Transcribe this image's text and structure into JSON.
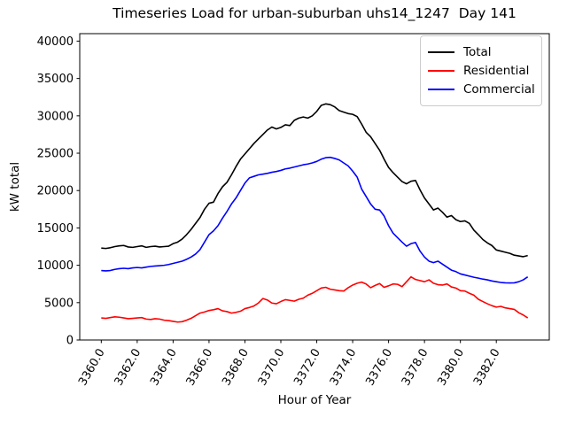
{
  "title": "Timeseries Load for urban-suburban uhs14_1247  Day 141",
  "chart_data": {
    "type": "line",
    "title": "Timeseries Load for urban-suburban uhs14_1247  Day 141",
    "xlabel": "Hour of Year",
    "ylabel": "kW total",
    "x_start": 3360.0,
    "x_step": 0.25,
    "x_points": 96,
    "xlim": [
      3358.8,
      3384.95
    ],
    "ylim": [
      0,
      41000
    ],
    "grid": false,
    "legend_position": "upper right",
    "x_tick_values": [
      3360,
      3362,
      3364,
      3366,
      3368,
      3370,
      3372,
      3374,
      3376,
      3378,
      3380,
      3382
    ],
    "x_tick_labels": [
      "3360.0",
      "3362.0",
      "3364.0",
      "3366.0",
      "3368.0",
      "3370.0",
      "3372.0",
      "3374.0",
      "3376.0",
      "3378.0",
      "3380.0",
      "3382.0"
    ],
    "y_tick_values": [
      0,
      5000,
      10000,
      15000,
      20000,
      25000,
      30000,
      35000,
      40000
    ],
    "y_tick_labels": [
      "0",
      "5000",
      "10000",
      "15000",
      "20000",
      "25000",
      "30000",
      "35000",
      "40000"
    ],
    "axis_color": "#000000",
    "background_color": "#ffffff",
    "series": [
      {
        "name": "Total",
        "color": "#000000",
        "values": [
          12300,
          12250,
          12350,
          12500,
          12600,
          12650,
          12450,
          12400,
          12500,
          12600,
          12400,
          12500,
          12550,
          12450,
          12500,
          12550,
          12900,
          13100,
          13500,
          14100,
          14800,
          15600,
          16400,
          17500,
          18300,
          18450,
          19600,
          20500,
          21100,
          22100,
          23200,
          24200,
          24900,
          25600,
          26300,
          26900,
          27500,
          28100,
          28500,
          28250,
          28450,
          28800,
          28700,
          29400,
          29700,
          29850,
          29700,
          30000,
          30600,
          31400,
          31600,
          31500,
          31200,
          30700,
          30500,
          30300,
          30200,
          29900,
          28900,
          27800,
          27200,
          26300,
          25400,
          24200,
          23100,
          22400,
          21800,
          21200,
          20900,
          21250,
          21350,
          20100,
          19000,
          18200,
          17400,
          17650,
          17100,
          16450,
          16650,
          16100,
          15850,
          15950,
          15600,
          14700,
          14100,
          13450,
          13000,
          12650,
          12050,
          11900,
          11750,
          11600,
          11350,
          11250,
          11150,
          11300
        ]
      },
      {
        "name": "Residential",
        "color": "#ff0000",
        "values": [
          2950,
          2900,
          3000,
          3100,
          3050,
          2950,
          2850,
          2900,
          2950,
          3000,
          2800,
          2750,
          2850,
          2800,
          2650,
          2600,
          2500,
          2400,
          2450,
          2650,
          2900,
          3250,
          3600,
          3750,
          3950,
          4050,
          4200,
          3900,
          3800,
          3600,
          3700,
          3850,
          4200,
          4350,
          4550,
          4950,
          5550,
          5350,
          4950,
          4850,
          5150,
          5400,
          5300,
          5200,
          5450,
          5600,
          6000,
          6250,
          6600,
          6950,
          7050,
          6800,
          6700,
          6600,
          6550,
          7000,
          7350,
          7600,
          7750,
          7500,
          7000,
          7300,
          7550,
          7050,
          7250,
          7500,
          7450,
          7150,
          7800,
          8450,
          8100,
          7950,
          7800,
          8050,
          7600,
          7400,
          7350,
          7500,
          7100,
          6950,
          6600,
          6550,
          6250,
          6000,
          5450,
          5150,
          4850,
          4600,
          4400,
          4500,
          4300,
          4200,
          4100,
          3650,
          3350,
          2950
        ]
      },
      {
        "name": "Commercial",
        "color": "#0000ff",
        "values": [
          9300,
          9250,
          9300,
          9450,
          9550,
          9600,
          9550,
          9650,
          9700,
          9650,
          9750,
          9850,
          9900,
          9950,
          10000,
          10100,
          10250,
          10400,
          10550,
          10800,
          11100,
          11500,
          12100,
          13100,
          14100,
          14600,
          15300,
          16300,
          17200,
          18200,
          19000,
          20000,
          21000,
          21700,
          21900,
          22100,
          22200,
          22300,
          22450,
          22550,
          22700,
          22900,
          23000,
          23150,
          23300,
          23450,
          23550,
          23700,
          23900,
          24200,
          24400,
          24450,
          24300,
          24100,
          23700,
          23300,
          22600,
          21800,
          20200,
          19200,
          18200,
          17500,
          17400,
          16600,
          15300,
          14300,
          13700,
          13100,
          12550,
          12900,
          13050,
          11900,
          11100,
          10550,
          10350,
          10550,
          10150,
          9750,
          9350,
          9150,
          8850,
          8700,
          8550,
          8400,
          8280,
          8150,
          8050,
          7900,
          7800,
          7700,
          7650,
          7630,
          7650,
          7800,
          8050,
          8450
        ]
      }
    ],
    "legend_entries": [
      "Total",
      "Residential",
      "Commercial"
    ]
  }
}
